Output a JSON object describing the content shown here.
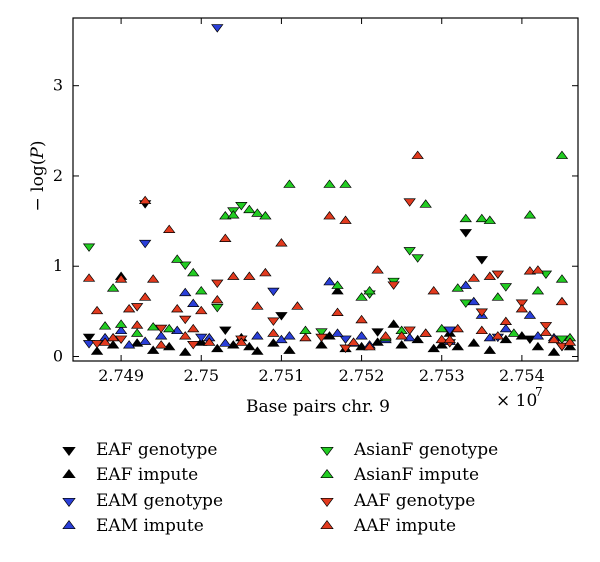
{
  "chart_data": {
    "type": "scatter",
    "title": "",
    "xlabel": "Base pairs chr. 9",
    "ylabel_prefix": "− log(",
    "ylabel_var": "P",
    "ylabel_suffix": ")",
    "x_multiplier_prefix": "× 10",
    "x_multiplier_exp": "7",
    "xlim": [
      2.7484,
      2.7547
    ],
    "ylim": [
      -0.05,
      3.75
    ],
    "x_ticks": [
      2.749,
      2.75,
      2.751,
      2.752,
      2.753,
      2.754
    ],
    "x_tick_labels": [
      "2.749",
      "2.75",
      "2.751",
      "2.752",
      "2.753",
      "2.754"
    ],
    "y_ticks": [
      0,
      1,
      2,
      3
    ],
    "y_tick_labels": [
      "0",
      "1",
      "2",
      "3"
    ],
    "grid": false,
    "legend_position": "bottom",
    "series": [
      {
        "name": "EAF genotype",
        "color": "#000000",
        "marker": "triangle-down",
        "points": [
          [
            2.7493,
            1.7
          ],
          [
            2.7533,
            1.38
          ],
          [
            2.7535,
            1.08
          ],
          [
            2.751,
            0.46
          ],
          [
            2.7486,
            0.22
          ],
          [
            2.7503,
            0.3
          ],
          [
            2.7522,
            0.28
          ],
          [
            2.7541,
            0.2
          ],
          [
            2.7545,
            0.12
          ]
        ]
      },
      {
        "name": "EAF impute",
        "color": "#000000",
        "marker": "triangle-up",
        "points": [
          [
            2.7487,
            0.05
          ],
          [
            2.7489,
            0.12
          ],
          [
            2.749,
            0.88
          ],
          [
            2.7492,
            0.14
          ],
          [
            2.7494,
            0.06
          ],
          [
            2.7496,
            0.1
          ],
          [
            2.7498,
            0.04
          ],
          [
            2.75,
            0.15
          ],
          [
            2.7502,
            0.08
          ],
          [
            2.7504,
            0.12
          ],
          [
            2.7505,
            0.2
          ],
          [
            2.7506,
            0.1
          ],
          [
            2.7507,
            0.05
          ],
          [
            2.7509,
            0.14
          ],
          [
            2.7511,
            0.06
          ],
          [
            2.7515,
            0.12
          ],
          [
            2.7516,
            0.22
          ],
          [
            2.7517,
            0.72
          ],
          [
            2.7518,
            0.08
          ],
          [
            2.752,
            0.1
          ],
          [
            2.7522,
            0.15
          ],
          [
            2.7524,
            0.35
          ],
          [
            2.7525,
            0.12
          ],
          [
            2.7527,
            0.18
          ],
          [
            2.7529,
            0.08
          ],
          [
            2.753,
            0.12
          ],
          [
            2.7531,
            0.25
          ],
          [
            2.7532,
            0.1
          ],
          [
            2.7534,
            0.14
          ],
          [
            2.7536,
            0.06
          ],
          [
            2.7538,
            0.18
          ],
          [
            2.754,
            0.22
          ],
          [
            2.7542,
            0.1
          ],
          [
            2.7544,
            0.04
          ],
          [
            2.7546,
            0.1
          ]
        ]
      },
      {
        "name": "EAM genotype",
        "color": "#2a3fd8",
        "marker": "triangle-down",
        "points": [
          [
            2.7502,
            3.65
          ],
          [
            2.7493,
            1.26
          ],
          [
            2.7509,
            0.73
          ],
          [
            2.75,
            0.22
          ],
          [
            2.7486,
            0.15
          ],
          [
            2.7518,
            0.2
          ],
          [
            2.7531,
            0.3
          ],
          [
            2.7537,
            0.22
          ]
        ]
      },
      {
        "name": "EAM impute",
        "color": "#2a3fd8",
        "marker": "triangle-up",
        "points": [
          [
            2.7488,
            0.2
          ],
          [
            2.749,
            0.28
          ],
          [
            2.7491,
            0.12
          ],
          [
            2.7493,
            0.16
          ],
          [
            2.7495,
            0.22
          ],
          [
            2.7497,
            0.28
          ],
          [
            2.7498,
            0.7
          ],
          [
            2.7499,
            0.58
          ],
          [
            2.7501,
            0.2
          ],
          [
            2.7503,
            0.14
          ],
          [
            2.7507,
            0.22
          ],
          [
            2.751,
            0.18
          ],
          [
            2.7511,
            0.22
          ],
          [
            2.7516,
            0.82
          ],
          [
            2.7517,
            0.25
          ],
          [
            2.7519,
            0.14
          ],
          [
            2.752,
            0.22
          ],
          [
            2.7521,
            0.12
          ],
          [
            2.7523,
            0.18
          ],
          [
            2.7526,
            0.2
          ],
          [
            2.7528,
            0.25
          ],
          [
            2.7531,
            0.16
          ],
          [
            2.7533,
            0.78
          ],
          [
            2.7534,
            0.6
          ],
          [
            2.7535,
            0.45
          ],
          [
            2.7536,
            0.2
          ],
          [
            2.7538,
            0.3
          ],
          [
            2.7541,
            0.45
          ],
          [
            2.7542,
            0.22
          ],
          [
            2.7544,
            0.2
          ]
        ]
      },
      {
        "name": "AsianF genotype",
        "color": "#22cc22",
        "marker": "triangle-down",
        "points": [
          [
            2.7486,
            1.22
          ],
          [
            2.7505,
            1.68
          ],
          [
            2.7504,
            1.62
          ],
          [
            2.7526,
            1.18
          ],
          [
            2.7527,
            1.1
          ],
          [
            2.7524,
            0.84
          ],
          [
            2.7521,
            0.7
          ],
          [
            2.7533,
            0.6
          ],
          [
            2.7538,
            0.78
          ],
          [
            2.7543,
            0.92
          ],
          [
            2.7498,
            1.02
          ],
          [
            2.7502,
            0.55
          ],
          [
            2.7515,
            0.28
          ],
          [
            2.7545,
            0.2
          ]
        ]
      },
      {
        "name": "AsianF impute",
        "color": "#22cc22",
        "marker": "triangle-up",
        "points": [
          [
            2.7488,
            0.33
          ],
          [
            2.7489,
            0.75
          ],
          [
            2.749,
            0.35
          ],
          [
            2.7492,
            0.25
          ],
          [
            2.7494,
            0.32
          ],
          [
            2.7496,
            0.3
          ],
          [
            2.7497,
            1.07
          ],
          [
            2.7499,
            0.92
          ],
          [
            2.75,
            0.72
          ],
          [
            2.7503,
            1.55
          ],
          [
            2.7504,
            1.56
          ],
          [
            2.7506,
            1.62
          ],
          [
            2.7507,
            1.58
          ],
          [
            2.7508,
            1.55
          ],
          [
            2.7511,
            1.9
          ],
          [
            2.7513,
            0.28
          ],
          [
            2.7516,
            1.9
          ],
          [
            2.7517,
            0.78
          ],
          [
            2.7518,
            1.9
          ],
          [
            2.752,
            0.65
          ],
          [
            2.7521,
            0.72
          ],
          [
            2.7523,
            0.2
          ],
          [
            2.7525,
            0.28
          ],
          [
            2.7528,
            1.68
          ],
          [
            2.753,
            0.3
          ],
          [
            2.7532,
            0.75
          ],
          [
            2.7533,
            1.52
          ],
          [
            2.7535,
            1.52
          ],
          [
            2.7536,
            1.5
          ],
          [
            2.7537,
            0.65
          ],
          [
            2.7539,
            0.25
          ],
          [
            2.7541,
            1.56
          ],
          [
            2.7542,
            0.72
          ],
          [
            2.7545,
            2.22
          ],
          [
            2.7545,
            0.85
          ],
          [
            2.7546,
            0.2
          ]
        ]
      },
      {
        "name": "AAF genotype",
        "color": "#e23a1e",
        "marker": "triangle-down",
        "points": [
          [
            2.7526,
            1.72
          ],
          [
            2.7492,
            0.56
          ],
          [
            2.7495,
            0.32
          ],
          [
            2.7498,
            0.42
          ],
          [
            2.7499,
            0.14
          ],
          [
            2.7502,
            0.82
          ],
          [
            2.7505,
            0.2
          ],
          [
            2.7509,
            0.4
          ],
          [
            2.7515,
            0.22
          ],
          [
            2.7518,
            0.1
          ],
          [
            2.7524,
            0.8
          ],
          [
            2.7526,
            0.3
          ],
          [
            2.7531,
            0.16
          ],
          [
            2.7535,
            0.5
          ],
          [
            2.7537,
            0.92
          ],
          [
            2.754,
            0.6
          ],
          [
            2.7543,
            0.35
          ],
          [
            2.7545,
            0.12
          ],
          [
            2.7487,
            0.15
          ],
          [
            2.749,
            0.2
          ]
        ]
      },
      {
        "name": "AAF impute",
        "color": "#e23a1e",
        "marker": "triangle-up",
        "points": [
          [
            2.7486,
            0.86
          ],
          [
            2.7487,
            0.5
          ],
          [
            2.7488,
            0.15
          ],
          [
            2.7489,
            0.2
          ],
          [
            2.749,
            0.85
          ],
          [
            2.7491,
            0.52
          ],
          [
            2.7492,
            0.34
          ],
          [
            2.7493,
            0.65
          ],
          [
            2.7493,
            1.72
          ],
          [
            2.7494,
            0.85
          ],
          [
            2.7495,
            0.12
          ],
          [
            2.7496,
            1.4
          ],
          [
            2.7497,
            0.52
          ],
          [
            2.7498,
            0.22
          ],
          [
            2.7499,
            0.3
          ],
          [
            2.75,
            0.5
          ],
          [
            2.7501,
            0.15
          ],
          [
            2.7502,
            0.62
          ],
          [
            2.7503,
            1.3
          ],
          [
            2.7504,
            0.88
          ],
          [
            2.7505,
            0.15
          ],
          [
            2.7506,
            0.88
          ],
          [
            2.7507,
            0.55
          ],
          [
            2.7508,
            0.92
          ],
          [
            2.7509,
            0.25
          ],
          [
            2.751,
            1.25
          ],
          [
            2.7512,
            0.55
          ],
          [
            2.7513,
            0.2
          ],
          [
            2.7516,
            1.55
          ],
          [
            2.7517,
            0.48
          ],
          [
            2.7518,
            1.5
          ],
          [
            2.7519,
            0.15
          ],
          [
            2.752,
            0.4
          ],
          [
            2.7521,
            0.1
          ],
          [
            2.7522,
            0.95
          ],
          [
            2.7523,
            0.22
          ],
          [
            2.7525,
            0.22
          ],
          [
            2.7527,
            2.22
          ],
          [
            2.7528,
            0.25
          ],
          [
            2.7529,
            0.72
          ],
          [
            2.753,
            0.18
          ],
          [
            2.7531,
            0.18
          ],
          [
            2.7532,
            0.3
          ],
          [
            2.7534,
            0.86
          ],
          [
            2.7535,
            0.28
          ],
          [
            2.7536,
            0.88
          ],
          [
            2.7537,
            0.22
          ],
          [
            2.7538,
            0.38
          ],
          [
            2.754,
            0.52
          ],
          [
            2.7541,
            0.94
          ],
          [
            2.7542,
            0.95
          ],
          [
            2.7543,
            0.26
          ],
          [
            2.7544,
            0.18
          ],
          [
            2.7545,
            0.6
          ],
          [
            2.7546,
            0.15
          ]
        ]
      }
    ]
  }
}
